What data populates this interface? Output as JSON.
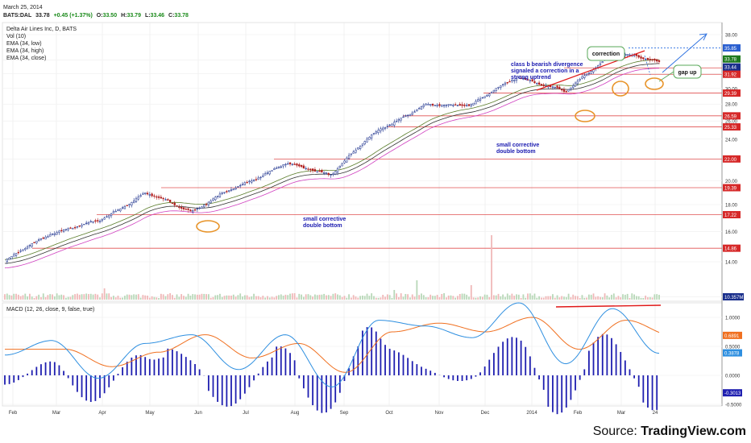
{
  "header": {
    "date": "March 25, 2014",
    "symbol": "BATS:DAL",
    "last": "33.78",
    "change": "+0.45 (+1.37%)",
    "open_label": "O:",
    "open": "33.50",
    "high_label": "H:",
    "high": "33.79",
    "low_label": "L:",
    "low": "33.46",
    "close_label": "C:",
    "close": "33.78"
  },
  "legend": {
    "title": "Delta Air Lines Inc, D, BATS",
    "items": [
      "Vol (10)",
      "EMA (34, low)",
      "EMA (34, high)",
      "EMA (34, close)"
    ]
  },
  "macd_legend": "MACD (12, 26, close, 9, false, true)",
  "source": {
    "prefix": "Source: ",
    "brand": "TradingView.com"
  },
  "annotations": {
    "divergence": [
      "class b bearish divergence",
      "signaled a correction in a",
      "strong uptrend"
    ],
    "correction": "correction",
    "gap_up": "gap up",
    "double_bottom_1": [
      "small corrective",
      "double bottom"
    ],
    "double_bottom_2": [
      "small corrective",
      "double bottom"
    ]
  },
  "colors": {
    "up": "#1a2f8c",
    "down": "#b01e1e",
    "ema_low": "#d040c0",
    "ema_high": "#5a7d2a",
    "ema_close": "#333333",
    "macd": "#2e8fe0",
    "signal": "#f07020",
    "hist": "#1f1fb0",
    "hline": "#e05050",
    "highlight": "#e8942a",
    "divergence_line": "#e01818",
    "box": "#5aa85a"
  },
  "chart_data": [
    {
      "type": "line",
      "name": "price",
      "x_ticks": [
        "Feb",
        "Mar",
        "Apr",
        "May",
        "Jun",
        "Jul",
        "Aug",
        "Sep",
        "Oct",
        "Nov",
        "Dec",
        "2014",
        "Feb",
        "Mar",
        "24"
      ],
      "y_ticks": [
        "38.00",
        "34.00",
        "32.00",
        "30.00",
        "28.00",
        "26.00",
        "24.00",
        "22.00",
        "20.00",
        "18.00",
        "16.00",
        "14.00",
        "12.00"
      ],
      "horizontal_levels": [
        "35.85",
        "32.84",
        "31.92",
        "29.39",
        "26.59",
        "25.33",
        "22.00",
        "19.39",
        "17.22",
        "14.86"
      ],
      "last_value_labels": [
        "33.78",
        "33.44"
      ],
      "volume_label": "10.357M",
      "series": [
        {
          "key": "close",
          "months": [
            "Feb",
            "Mar",
            "Apr",
            "May",
            "Jun",
            "Jul",
            "Aug",
            "Sep",
            "Oct",
            "Nov",
            "Dec",
            "2014",
            "Feb",
            "Mar",
            "24"
          ],
          "values": [
            14.0,
            15.9,
            16.7,
            18.9,
            17.5,
            19.5,
            21.5,
            20.6,
            25.0,
            27.8,
            28.0,
            31.6,
            29.5,
            35.0,
            33.8
          ]
        }
      ]
    },
    {
      "type": "line",
      "name": "macd",
      "y_ticks": [
        "1.0000",
        "0.5000",
        "0.0000",
        "-0.5000"
      ],
      "last_value_labels": [
        "0.6891",
        "0.3878",
        "-0.3013"
      ],
      "series": [
        {
          "key": "macd",
          "months": [
            "Feb",
            "Mar",
            "Apr",
            "May",
            "Jun",
            "Jul",
            "Aug",
            "Sep",
            "Oct",
            "Nov",
            "Dec",
            "2014",
            "Feb",
            "Mar",
            "24"
          ],
          "values": [
            0.35,
            0.6,
            -0.05,
            0.55,
            0.7,
            0.1,
            0.7,
            -0.2,
            0.95,
            0.85,
            0.65,
            1.25,
            0.2,
            1.15,
            0.38
          ]
        },
        {
          "key": "signal",
          "months": [
            "Feb",
            "Mar",
            "Apr",
            "May",
            "Jun",
            "Jul",
            "Aug",
            "Sep",
            "Oct",
            "Nov",
            "Dec",
            "2014",
            "Feb",
            "Mar",
            "24"
          ],
          "values": [
            0.45,
            0.45,
            0.15,
            0.4,
            0.7,
            0.3,
            0.55,
            0.05,
            0.75,
            0.9,
            0.75,
            1.0,
            0.45,
            0.95,
            0.69
          ]
        }
      ]
    }
  ]
}
